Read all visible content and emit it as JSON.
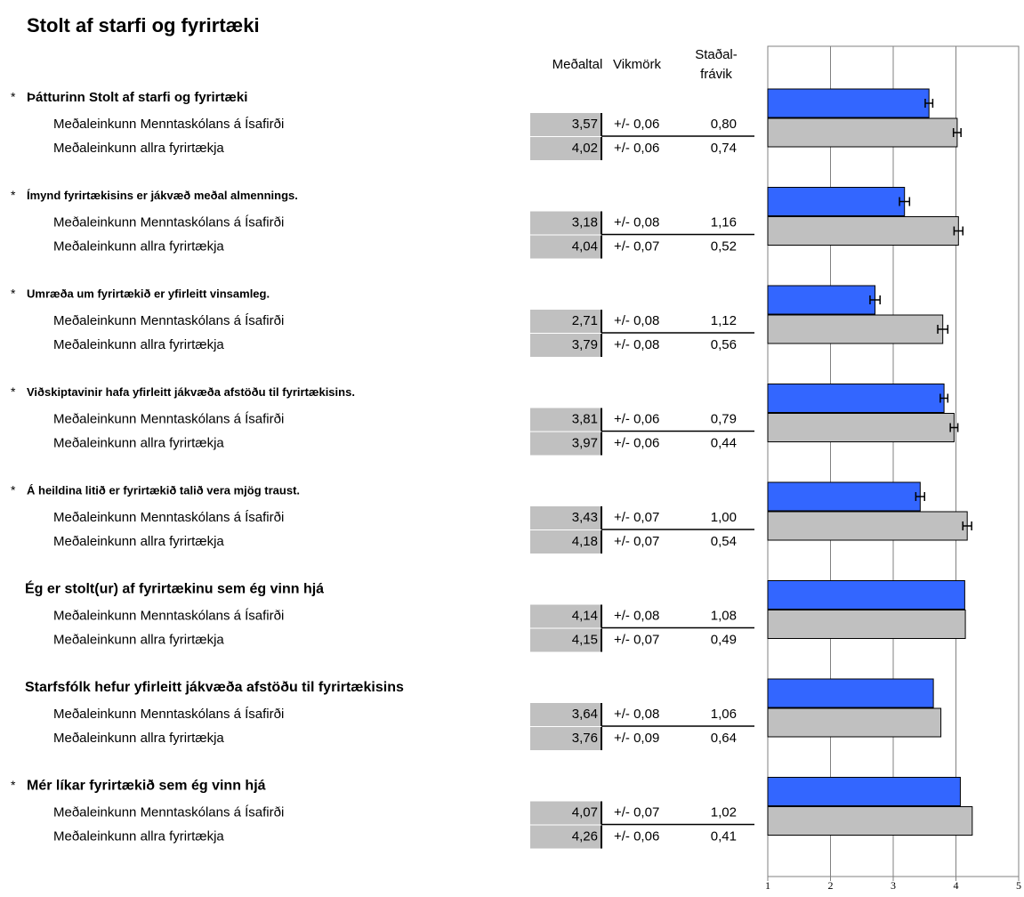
{
  "chart_data": {
    "type": "bar",
    "orientation": "horizontal",
    "title": "Stolt af starfi og fyrirtæki",
    "columns": [
      "Meðaltal",
      "Vikmörk",
      [
        "Staðal-",
        "frávik"
      ]
    ],
    "categories": [
      "Þátturinn Stolt af starfi og fyrirtæki",
      "Ímynd fyrirtækisins er jákvæð meðal almennings.",
      "Umræða um fyrirtækið er yfirleitt vinsamleg.",
      "Viðskiptavinir hafa yfirleitt jákvæða afstöðu til fyrirtækisins.",
      "Á heildina litið er fyrirtækið talið vera mjög traust.",
      "Ég er stolt(ur) af fyrirtækinu sem ég vinn hjá",
      "Starfsfólk hefur yfirleitt jákvæða afstöðu til fyrirtækisins",
      "Mér líkar fyrirtækið sem ég vinn hjá"
    ],
    "markers": [
      "*",
      "*",
      "*",
      "*",
      "*",
      null,
      null,
      "*"
    ],
    "error_bars": [
      true,
      true,
      true,
      true,
      true,
      false,
      false,
      false
    ],
    "series": [
      {
        "name": "Meðaleinkunn Menntaskólans á Ísafirði",
        "color": "#3366ff",
        "values": [
          3.57,
          3.18,
          2.71,
          3.81,
          3.43,
          4.14,
          3.64,
          4.07
        ],
        "value_labels": [
          "3,57",
          "3,18",
          "2,71",
          "3,81",
          "3,43",
          "4,14",
          "3,64",
          "4,07"
        ],
        "margins": [
          0.06,
          0.08,
          0.08,
          0.06,
          0.07,
          0.08,
          0.08,
          0.07
        ],
        "margin_labels": [
          "+/- 0,06",
          "+/- 0,08",
          "+/- 0,08",
          "+/- 0,06",
          "+/- 0,07",
          "+/- 0,08",
          "+/- 0,08",
          "+/- 0,07"
        ],
        "sd": [
          0.8,
          1.16,
          1.12,
          0.79,
          1.0,
          1.08,
          1.06,
          1.02
        ],
        "sd_labels": [
          "0,80",
          "1,16",
          "1,12",
          "0,79",
          "1,00",
          "1,08",
          "1,06",
          "1,02"
        ]
      },
      {
        "name": "Meðaleinkunn allra fyrirtækja",
        "color": "#c0c0c0",
        "values": [
          4.02,
          4.04,
          3.79,
          3.97,
          4.18,
          4.15,
          3.76,
          4.26
        ],
        "value_labels": [
          "4,02",
          "4,04",
          "3,79",
          "3,97",
          "4,18",
          "4,15",
          "3,76",
          "4,26"
        ],
        "margins": [
          0.06,
          0.07,
          0.08,
          0.06,
          0.07,
          0.07,
          0.09,
          0.06
        ],
        "margin_labels": [
          "+/- 0,06",
          "+/- 0,07",
          "+/- 0,08",
          "+/- 0,06",
          "+/- 0,07",
          "+/- 0,07",
          "+/- 0,09",
          "+/- 0,06"
        ],
        "sd": [
          0.74,
          0.52,
          0.56,
          0.44,
          0.54,
          0.49,
          0.64,
          0.41
        ],
        "sd_labels": [
          "0,74",
          "0,52",
          "0,56",
          "0,44",
          "0,54",
          "0,49",
          "0,64",
          "0,41"
        ]
      }
    ],
    "xlim": [
      1,
      5
    ],
    "xticks": [
      1,
      2,
      3,
      4,
      5
    ],
    "grid": true
  }
}
